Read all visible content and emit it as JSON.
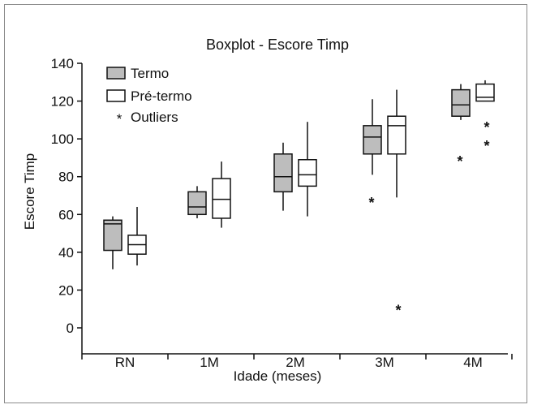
{
  "chart_data": {
    "type": "boxplot",
    "title": "Boxplot  - Escore Timp",
    "xlabel": "Idade (meses)",
    "ylabel": "Escore Timp",
    "categories": [
      "RN",
      "1M",
      "2M",
      "3M",
      "4M"
    ],
    "ylim": [
      0,
      140
    ],
    "yticks": [
      0,
      20,
      40,
      60,
      80,
      100,
      120,
      140
    ],
    "grid": false,
    "legend_position": "top-left",
    "legend": [
      {
        "key": "termo",
        "label": "Termo",
        "symbol": "box-filled"
      },
      {
        "key": "pretermo",
        "label": "Pré-termo",
        "symbol": "box-open"
      },
      {
        "key": "outliers",
        "label": "Outliers",
        "symbol": "*"
      }
    ],
    "series": [
      {
        "name": "Termo",
        "fill": "#bdbdbd",
        "boxes": [
          {
            "category": "RN",
            "min": 31,
            "q1": 41,
            "median": 55,
            "q3": 57,
            "max": 59,
            "outliers": []
          },
          {
            "category": "1M",
            "min": 58,
            "q1": 60,
            "median": 64,
            "q3": 72,
            "max": 75,
            "outliers": []
          },
          {
            "category": "2M",
            "min": 62,
            "q1": 72,
            "median": 80,
            "q3": 92,
            "max": 98,
            "outliers": []
          },
          {
            "category": "3M",
            "min": 81,
            "q1": 92,
            "median": 101,
            "q3": 107,
            "max": 121,
            "outliers": [
              67
            ]
          },
          {
            "category": "4M",
            "min": 110,
            "q1": 112,
            "median": 118,
            "q3": 126,
            "max": 129,
            "outliers": [
              89
            ]
          }
        ]
      },
      {
        "name": "Pré-termo",
        "fill": "#ffffff",
        "boxes": [
          {
            "category": "RN",
            "min": 33,
            "q1": 39,
            "median": 44,
            "q3": 49,
            "max": 64,
            "outliers": []
          },
          {
            "category": "1M",
            "min": 53,
            "q1": 58,
            "median": 68,
            "q3": 79,
            "max": 88,
            "outliers": []
          },
          {
            "category": "2M",
            "min": 59,
            "q1": 75,
            "median": 81,
            "q3": 89,
            "max": 109,
            "outliers": []
          },
          {
            "category": "3M",
            "min": 69,
            "q1": 92,
            "median": 107,
            "q3": 112,
            "max": 126,
            "outliers": [
              10
            ]
          },
          {
            "category": "4M",
            "min": 120,
            "q1": 120,
            "median": 122,
            "q3": 129,
            "max": 131,
            "outliers": [
              107,
              97
            ]
          }
        ]
      }
    ]
  }
}
